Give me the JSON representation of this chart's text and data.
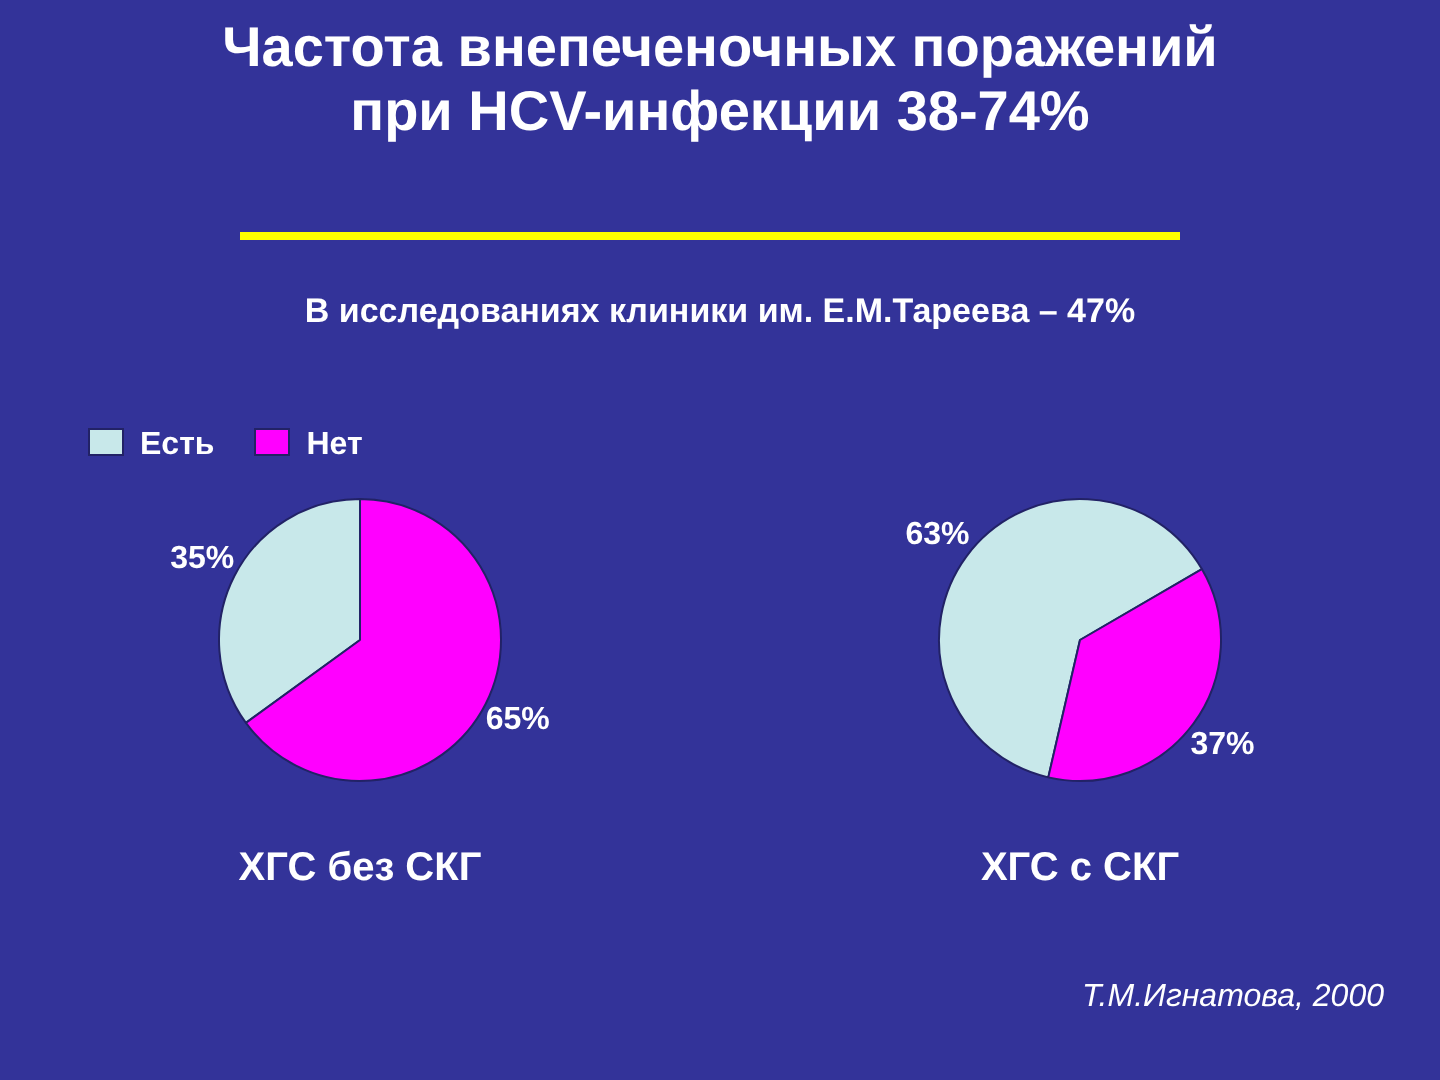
{
  "chart_data": {
    "type": "pie",
    "title": "Частота внепеченочных поражений при HCV-инфекции 38-74%",
    "subtitle": "В исследованиях клиники им. Е.М.Тареева – 47%",
    "categories": [
      "Есть",
      "Нет"
    ],
    "colors": [
      "#c8e8ea",
      "#ff00ff"
    ],
    "legend": "top left",
    "annotations": [
      "Т.М.Игнатова, 2000"
    ],
    "series": [
      {
        "name": "ХГС без СКГ",
        "values": [
          35,
          65
        ],
        "value_labels": [
          "35%",
          "65%"
        ]
      },
      {
        "name": "ХГС с СКГ",
        "values": [
          63,
          37
        ],
        "value_labels": [
          "63%",
          "37%"
        ]
      }
    ]
  }
}
